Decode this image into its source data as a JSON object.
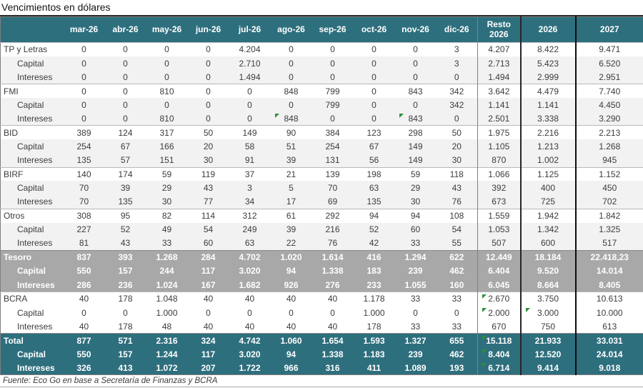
{
  "title": "Vencimientos en dólares",
  "source_note": "Fuente: Eco Go en base a Secretaría de Finanzas y BCRA",
  "colors": {
    "header_teal": "#2e6f7e",
    "tesoro_gray": "#a8a8a8",
    "subrow_gray": "#f2f2f2",
    "flag_green": "#2f8f3a"
  },
  "chart_data": {
    "type": "table",
    "title": "Vencimientos en dólares",
    "columns": [
      "",
      "mar-26",
      "abr-26",
      "may-26",
      "jun-26",
      "jul-26",
      "ago-26",
      "sep-26",
      "oct-26",
      "nov-26",
      "dic-26",
      "Resto 2026",
      "2026",
      "2027"
    ],
    "rows": [
      {
        "label": "TP y Letras",
        "type": "main",
        "section_start": true,
        "values": [
          "0",
          "0",
          "0",
          "0",
          "4.204",
          "0",
          "0",
          "0",
          "0",
          "3",
          "4.207",
          "8.422",
          "9.471"
        ]
      },
      {
        "label": "Capital",
        "type": "sub",
        "values": [
          "0",
          "0",
          "0",
          "0",
          "2.710",
          "0",
          "0",
          "0",
          "0",
          "3",
          "2.713",
          "5.423",
          "6.520"
        ]
      },
      {
        "label": "Intereses",
        "type": "sub",
        "values": [
          "0",
          "0",
          "0",
          "0",
          "1.494",
          "0",
          "0",
          "0",
          "0",
          "0",
          "1.494",
          "2.999",
          "2.951"
        ]
      },
      {
        "label": "FMI",
        "type": "main",
        "section_start": true,
        "values": [
          "0",
          "0",
          "810",
          "0",
          "0",
          "848",
          "799",
          "0",
          "843",
          "342",
          "3.642",
          "4.479",
          "7.740"
        ]
      },
      {
        "label": "Capital",
        "type": "sub",
        "values": [
          "0",
          "0",
          "0",
          "0",
          "0",
          "0",
          "799",
          "0",
          "0",
          "342",
          "1.141",
          "1.141",
          "4.450"
        ]
      },
      {
        "label": "Intereses",
        "type": "sub",
        "values": [
          "0",
          "0",
          "810",
          "0",
          "0",
          "848",
          "0",
          "0",
          "843",
          "0",
          "2.501",
          "3.338",
          "3.290"
        ],
        "flags": [
          5,
          8
        ]
      },
      {
        "label": "BID",
        "type": "main",
        "section_start": true,
        "values": [
          "389",
          "124",
          "317",
          "50",
          "149",
          "90",
          "384",
          "123",
          "298",
          "50",
          "1.975",
          "2.216",
          "2.213"
        ]
      },
      {
        "label": "Capital",
        "type": "sub",
        "values": [
          "254",
          "67",
          "166",
          "20",
          "58",
          "51",
          "254",
          "67",
          "149",
          "20",
          "1.105",
          "1.213",
          "1.268"
        ]
      },
      {
        "label": "Intereses",
        "type": "sub",
        "values": [
          "135",
          "57",
          "151",
          "30",
          "91",
          "39",
          "131",
          "56",
          "149",
          "30",
          "870",
          "1.002",
          "945"
        ]
      },
      {
        "label": "BIRF",
        "type": "main",
        "section_start": true,
        "values": [
          "140",
          "174",
          "59",
          "119",
          "37",
          "21",
          "139",
          "198",
          "59",
          "118",
          "1.066",
          "1.125",
          "1.152"
        ]
      },
      {
        "label": "Capital",
        "type": "sub",
        "values": [
          "70",
          "39",
          "29",
          "43",
          "3",
          "5",
          "70",
          "63",
          "29",
          "43",
          "392",
          "400",
          "450"
        ]
      },
      {
        "label": "Intereses",
        "type": "sub",
        "values": [
          "70",
          "135",
          "30",
          "77",
          "34",
          "17",
          "69",
          "135",
          "30",
          "76",
          "673",
          "725",
          "702"
        ]
      },
      {
        "label": "Otros",
        "type": "main",
        "section_start": true,
        "values": [
          "308",
          "95",
          "82",
          "114",
          "312",
          "61",
          "292",
          "94",
          "94",
          "108",
          "1.559",
          "1.942",
          "1.842"
        ]
      },
      {
        "label": "Capital",
        "type": "sub",
        "values": [
          "227",
          "52",
          "49",
          "54",
          "249",
          "39",
          "216",
          "52",
          "60",
          "54",
          "1.053",
          "1.342",
          "1.325"
        ]
      },
      {
        "label": "Intereses",
        "type": "sub",
        "values": [
          "81",
          "43",
          "33",
          "60",
          "63",
          "22",
          "76",
          "42",
          "33",
          "55",
          "507",
          "600",
          "517"
        ]
      },
      {
        "label": "Tesoro",
        "type": "tesoro-main",
        "section_start": true,
        "values": [
          "837",
          "393",
          "1.268",
          "284",
          "4.702",
          "1.020",
          "1.614",
          "416",
          "1.294",
          "622",
          "12.449",
          "18.184",
          "22.418,23"
        ]
      },
      {
        "label": "Capital",
        "type": "tesoro-sub",
        "values": [
          "550",
          "157",
          "244",
          "117",
          "3.020",
          "94",
          "1.338",
          "183",
          "239",
          "462",
          "6.404",
          "9.520",
          "14.014"
        ]
      },
      {
        "label": "Intereses",
        "type": "tesoro-sub",
        "values": [
          "286",
          "236",
          "1.024",
          "167",
          "1.682",
          "926",
          "276",
          "233",
          "1.055",
          "160",
          "6.045",
          "8.664",
          "8.405"
        ]
      },
      {
        "label": "BCRA",
        "type": "plain-main",
        "section_start": true,
        "values": [
          "40",
          "178",
          "1.048",
          "40",
          "40",
          "40",
          "40",
          "1.178",
          "33",
          "33",
          "2.670",
          "3.750",
          "10.613"
        ],
        "flags": [
          10
        ]
      },
      {
        "label": "Capital",
        "type": "plain-sub",
        "values": [
          "0",
          "0",
          "1.000",
          "0",
          "0",
          "0",
          "0",
          "1.000",
          "0",
          "0",
          "2.000",
          "3.000",
          "10.000"
        ],
        "flags": [
          10,
          11
        ]
      },
      {
        "label": "Intereses",
        "type": "plain-sub",
        "values": [
          "40",
          "178",
          "48",
          "40",
          "40",
          "40",
          "40",
          "178",
          "33",
          "33",
          "670",
          "750",
          "613"
        ]
      },
      {
        "label": "Total",
        "type": "total-main",
        "section_start": true,
        "values": [
          "877",
          "571",
          "2.316",
          "324",
          "4.742",
          "1.060",
          "1.654",
          "1.593",
          "1.327",
          "655",
          "15.118",
          "21.933",
          "33.031"
        ],
        "flags": [
          10
        ]
      },
      {
        "label": "Capital",
        "type": "total-sub",
        "values": [
          "550",
          "157",
          "1.244",
          "117",
          "3.020",
          "94",
          "1.338",
          "1.183",
          "239",
          "462",
          "8.404",
          "12.520",
          "24.014"
        ],
        "flags": [
          10
        ]
      },
      {
        "label": "Intereses",
        "type": "total-sub",
        "values": [
          "326",
          "413",
          "1.072",
          "207",
          "1.722",
          "966",
          "316",
          "411",
          "1.089",
          "193",
          "6.714",
          "9.414",
          "9.018"
        ],
        "flags": [
          10
        ]
      }
    ]
  }
}
